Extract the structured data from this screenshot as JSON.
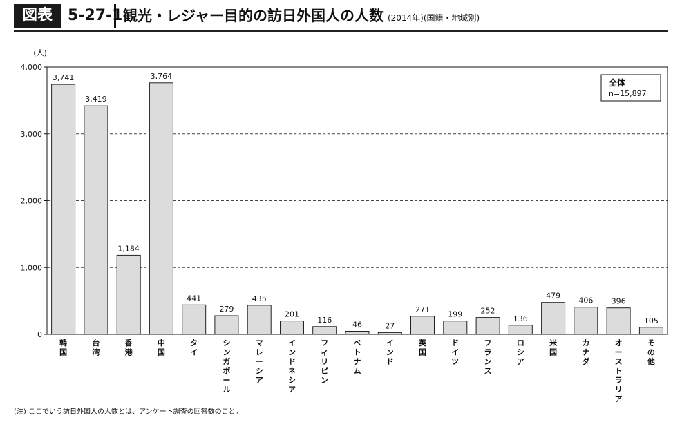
{
  "header": {
    "badge": "図表",
    "figure_number": "5-27-1",
    "title": "観光・レジャー目的の訪日外国人の人数",
    "subtitle": "(2014年)(国籍・地域別)"
  },
  "legend_box": {
    "label": "全体",
    "value": "n=15,897"
  },
  "footnote": "(注) ここでいう訪日外国人の人数とは、アンケート調査の回答数のこと。",
  "chart_data": {
    "type": "bar",
    "ylabel": "(人)",
    "ylim": [
      0,
      4000
    ],
    "yticks": [
      0,
      1000,
      2000,
      3000,
      4000
    ],
    "ytick_labels": [
      "0",
      "1,000",
      "2,000",
      "3,000",
      "4,000"
    ],
    "grid": "dashed horizontal at 1,000 intervals",
    "categories": [
      "韓国",
      "台湾",
      "香港",
      "中国",
      "タイ",
      "シンガポール",
      "マレーシア",
      "インドネシア",
      "フィリピン",
      "ベトナム",
      "インド",
      "英国",
      "ドイツ",
      "フランス",
      "ロシア",
      "米国",
      "カナダ",
      "オーストラリア",
      "その他"
    ],
    "values": [
      3741,
      3419,
      1184,
      3764,
      441,
      279,
      435,
      201,
      116,
      46,
      27,
      271,
      199,
      252,
      136,
      479,
      406,
      396,
      105
    ],
    "value_labels": [
      "3,741",
      "3,419",
      "1,184",
      "3,764",
      "441",
      "279",
      "435",
      "201",
      "116",
      "46",
      "27",
      "271",
      "199",
      "252",
      "136",
      "479",
      "406",
      "396",
      "105"
    ],
    "colors": {
      "bar_fill": "#dcdcdc",
      "bar_stroke": "#222222"
    }
  }
}
